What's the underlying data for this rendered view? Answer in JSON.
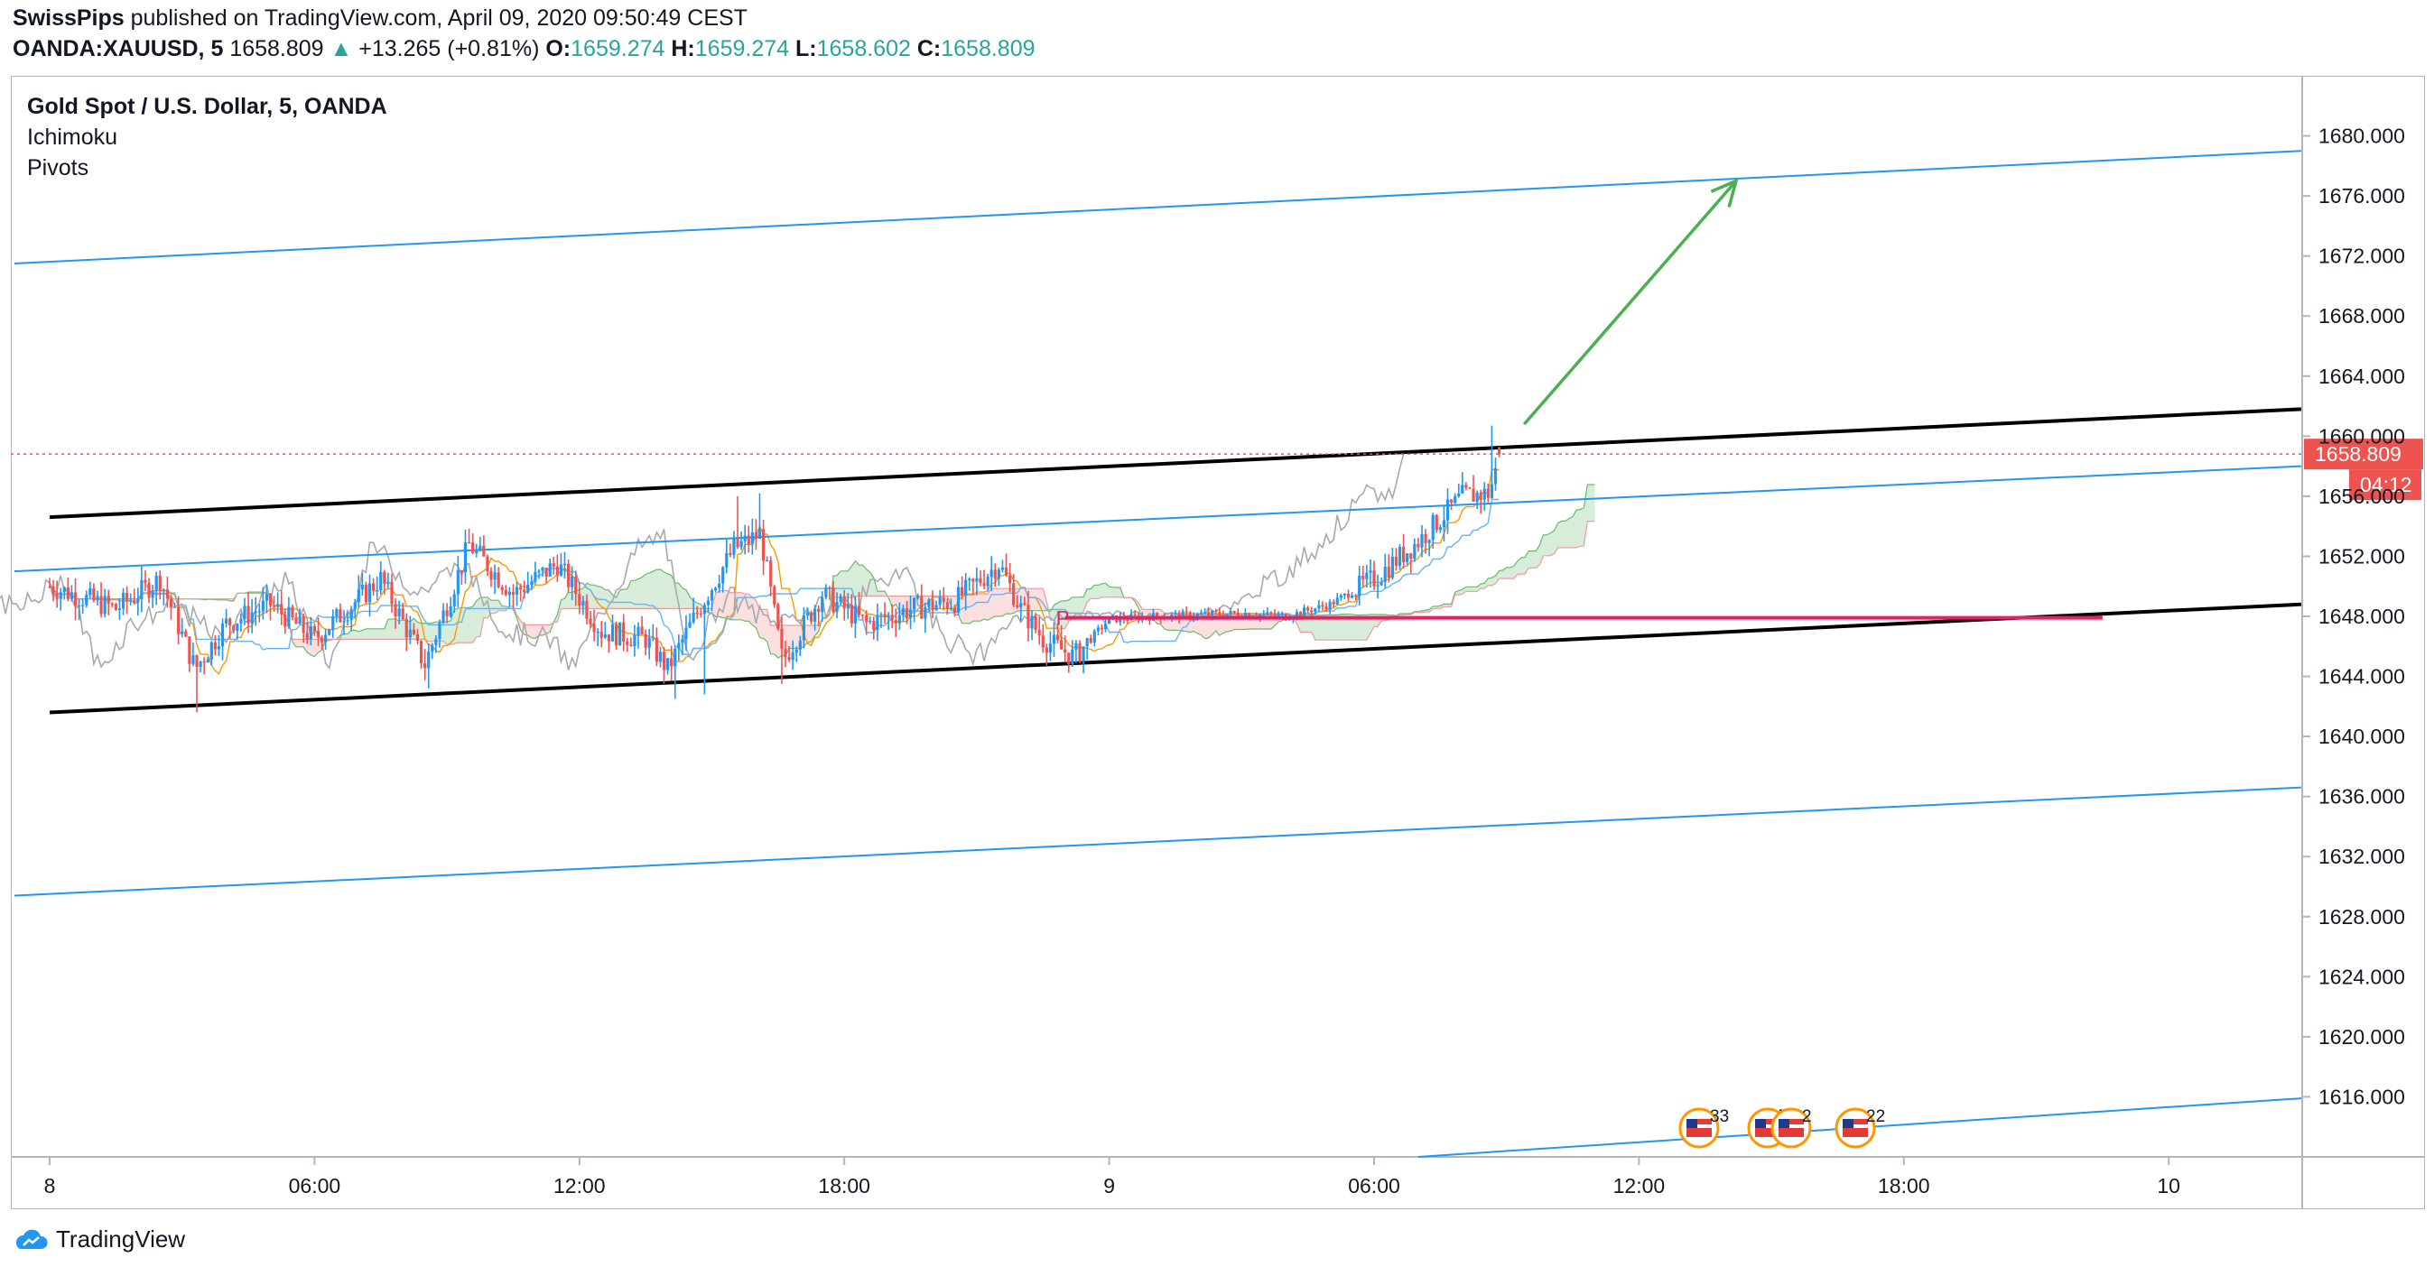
{
  "header": {
    "author": "SwissPips",
    "published_text": "published on TradingView.com, April 09, 2020 09:50:49 CEST",
    "symbol": "OANDA:XAUUSD, 5",
    "last": "1658.809",
    "change": "+13.265 (+0.81%)",
    "o_label": "O:",
    "o_value": "1659.274",
    "h_label": "H:",
    "h_value": "1659.274",
    "l_label": "L:",
    "l_value": "1658.602",
    "c_label": "C:",
    "c_value": "1658.809"
  },
  "legend": {
    "title": "Gold Spot / U.S. Dollar, 5, OANDA",
    "indicator1": "Ichimoku",
    "indicator2": "Pivots"
  },
  "brand": "TradingView",
  "colors": {
    "up": "#2196f3",
    "down": "#ef5350",
    "channel_black": "#000000",
    "channel_blue": "#2196f3",
    "arrow": "#4caf50",
    "pivot": "#e91e63",
    "price_tag": "#ef5350"
  },
  "chart_data": {
    "type": "candlestick",
    "ylim": [
      1612,
      1684
    ],
    "y_ticks": [
      "1680.000",
      "1676.000",
      "1672.000",
      "1668.000",
      "1664.000",
      "1660.000",
      "1656.000",
      "1652.000",
      "1648.000",
      "1644.000",
      "1640.000",
      "1636.000",
      "1632.000",
      "1628.000",
      "1624.000",
      "1620.000",
      "1616.000"
    ],
    "x_ticks": [
      "8",
      "06:00",
      "12:00",
      "18:00",
      "9",
      "06:00",
      "12:00",
      "18:00",
      "10"
    ],
    "last_price": "1658.809",
    "countdown": "04:12",
    "pivot_marker": "P",
    "events": [
      "33",
      "7",
      "2",
      "22"
    ],
    "trendlines": [
      {
        "name": "upper-blue",
        "color": "blue",
        "from": {
          "t": -0.8,
          "p": 1671.5
        },
        "to": {
          "t": 51.0,
          "p": 1679.0
        }
      },
      {
        "name": "upper-black",
        "color": "black",
        "from": {
          "t": 0.0,
          "p": 1654.6
        },
        "to": {
          "t": 51.0,
          "p": 1661.8
        }
      },
      {
        "name": "mid-blue",
        "color": "blue",
        "from": {
          "t": -0.8,
          "p": 1651.0
        },
        "to": {
          "t": 51.0,
          "p": 1658.0
        }
      },
      {
        "name": "lower-black",
        "color": "black",
        "from": {
          "t": 0.0,
          "p": 1641.6
        },
        "to": {
          "t": 51.0,
          "p": 1648.8
        }
      },
      {
        "name": "lower-blue",
        "color": "blue",
        "from": {
          "t": -0.8,
          "p": 1629.4
        },
        "to": {
          "t": 51.0,
          "p": 1636.6
        }
      },
      {
        "name": "bottom-blue",
        "color": "blue",
        "from": {
          "t": 31.0,
          "p": 1612.0
        },
        "to": {
          "t": 51.0,
          "p": 1615.9
        }
      }
    ],
    "arrow": {
      "from": {
        "t": 33.4,
        "p": 1660.8
      },
      "to": {
        "t": 38.2,
        "p": 1677.0
      }
    },
    "pivot_line": {
      "from": {
        "t": 23.0,
        "p": 1647.9
      },
      "to": {
        "t": 46.5,
        "p": 1647.9
      }
    },
    "price_anchors": [
      {
        "t": 0.0,
        "p": 1650.0
      },
      {
        "t": 1.5,
        "p": 1648.5
      },
      {
        "t": 2.5,
        "p": 1650.5
      },
      {
        "t": 3.3,
        "p": 1644.5
      },
      {
        "t": 4.0,
        "p": 1647.5
      },
      {
        "t": 5.0,
        "p": 1648.8
      },
      {
        "t": 6.0,
        "p": 1646.5
      },
      {
        "t": 7.5,
        "p": 1650.5
      },
      {
        "t": 8.5,
        "p": 1644.8
      },
      {
        "t": 9.5,
        "p": 1652.8
      },
      {
        "t": 10.5,
        "p": 1649.5
      },
      {
        "t": 11.5,
        "p": 1651.5
      },
      {
        "t": 12.5,
        "p": 1647.0
      },
      {
        "t": 13.5,
        "p": 1646.5
      },
      {
        "t": 14.0,
        "p": 1644.5
      },
      {
        "t": 14.8,
        "p": 1649.0
      },
      {
        "t": 15.5,
        "p": 1652.5
      },
      {
        "t": 16.1,
        "p": 1653.5
      },
      {
        "t": 16.6,
        "p": 1645.0
      },
      {
        "t": 17.5,
        "p": 1649.5
      },
      {
        "t": 18.5,
        "p": 1647.5
      },
      {
        "t": 19.5,
        "p": 1648.5
      },
      {
        "t": 20.5,
        "p": 1649.0
      },
      {
        "t": 21.5,
        "p": 1651.5
      },
      {
        "t": 22.0,
        "p": 1648.5
      },
      {
        "t": 22.5,
        "p": 1646.5
      },
      {
        "t": 23.2,
        "p": 1645.3
      },
      {
        "t": 24.0,
        "p": 1647.8
      },
      {
        "t": 25.0,
        "p": 1648.0
      },
      {
        "t": 26.0,
        "p": 1648.1
      },
      {
        "t": 27.0,
        "p": 1648.2
      },
      {
        "t": 28.0,
        "p": 1648.0
      },
      {
        "t": 29.0,
        "p": 1648.8
      },
      {
        "t": 30.0,
        "p": 1650.5
      },
      {
        "t": 31.0,
        "p": 1653.0
      },
      {
        "t": 32.0,
        "p": 1656.0
      },
      {
        "t": 32.6,
        "p": 1656.2
      },
      {
        "t": 32.9,
        "p": 1659.0
      }
    ],
    "spikes": [
      {
        "t": 3.3,
        "low": 1641.6
      },
      {
        "t": 8.6,
        "low": 1643.2
      },
      {
        "t": 14.2,
        "low": 1642.5
      },
      {
        "t": 14.8,
        "low": 1642.8
      },
      {
        "t": 16.1,
        "high": 1656.2
      },
      {
        "t": 16.6,
        "low": 1643.5
      },
      {
        "t": 15.6,
        "high": 1656.0
      },
      {
        "t": 23.4,
        "low": 1644.2
      },
      {
        "t": 32.7,
        "high": 1660.7
      }
    ]
  }
}
